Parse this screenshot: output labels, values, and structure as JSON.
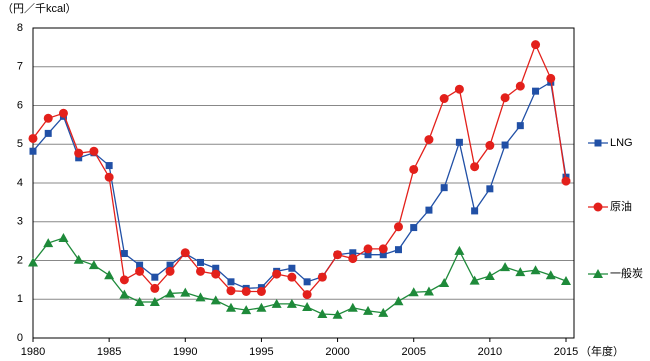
{
  "chart_data": {
    "type": "line",
    "y_label": "（円／千kcal）",
    "x_label": "（年度）",
    "x": [
      1980,
      1981,
      1982,
      1983,
      1984,
      1985,
      1986,
      1987,
      1988,
      1989,
      1990,
      1991,
      1992,
      1993,
      1994,
      1995,
      1996,
      1997,
      1998,
      1999,
      2000,
      2001,
      2002,
      2003,
      2004,
      2005,
      2006,
      2007,
      2008,
      2009,
      2010,
      2011,
      2012,
      2013,
      2014,
      2015
    ],
    "xlim": [
      1980,
      2015
    ],
    "xticks": [
      1980,
      1985,
      1990,
      1995,
      2000,
      2005,
      2010,
      2015
    ],
    "ylim": [
      0,
      8
    ],
    "yticks": [
      0,
      1,
      2,
      3,
      4,
      5,
      6,
      7,
      8
    ],
    "grid": true,
    "legend": "right",
    "series": [
      {
        "name": "LNG",
        "color": "#2150a6",
        "marker": "square",
        "values": [
          4.82,
          5.28,
          5.72,
          4.65,
          4.78,
          4.45,
          2.18,
          1.88,
          1.57,
          1.88,
          2.18,
          1.95,
          1.8,
          1.45,
          1.28,
          1.3,
          1.72,
          1.8,
          1.45,
          1.58,
          2.15,
          2.2,
          2.15,
          2.15,
          2.28,
          2.85,
          3.3,
          3.88,
          5.05,
          3.28,
          3.85,
          4.98,
          5.48,
          6.37,
          6.6,
          4.15
        ]
      },
      {
        "name": "原油",
        "color": "#e3201b",
        "marker": "circle",
        "values": [
          5.15,
          5.67,
          5.8,
          4.77,
          4.82,
          4.15,
          1.5,
          1.72,
          1.28,
          1.72,
          2.2,
          1.72,
          1.65,
          1.22,
          1.2,
          1.2,
          1.65,
          1.57,
          1.12,
          1.57,
          2.15,
          2.05,
          2.3,
          2.3,
          2.87,
          4.35,
          5.12,
          6.18,
          6.42,
          4.42,
          4.97,
          6.2,
          6.5,
          7.57,
          6.7,
          4.05
        ]
      },
      {
        "name": "一般炭",
        "color": "#1e8a3a",
        "marker": "triangle",
        "values": [
          1.95,
          2.45,
          2.58,
          2.02,
          1.88,
          1.62,
          1.12,
          0.93,
          0.93,
          1.15,
          1.17,
          1.05,
          0.97,
          0.78,
          0.72,
          0.78,
          0.88,
          0.88,
          0.8,
          0.62,
          0.6,
          0.78,
          0.7,
          0.65,
          0.95,
          1.18,
          1.2,
          1.42,
          2.25,
          1.48,
          1.6,
          1.83,
          1.7,
          1.75,
          1.62,
          1.47
        ]
      }
    ]
  }
}
